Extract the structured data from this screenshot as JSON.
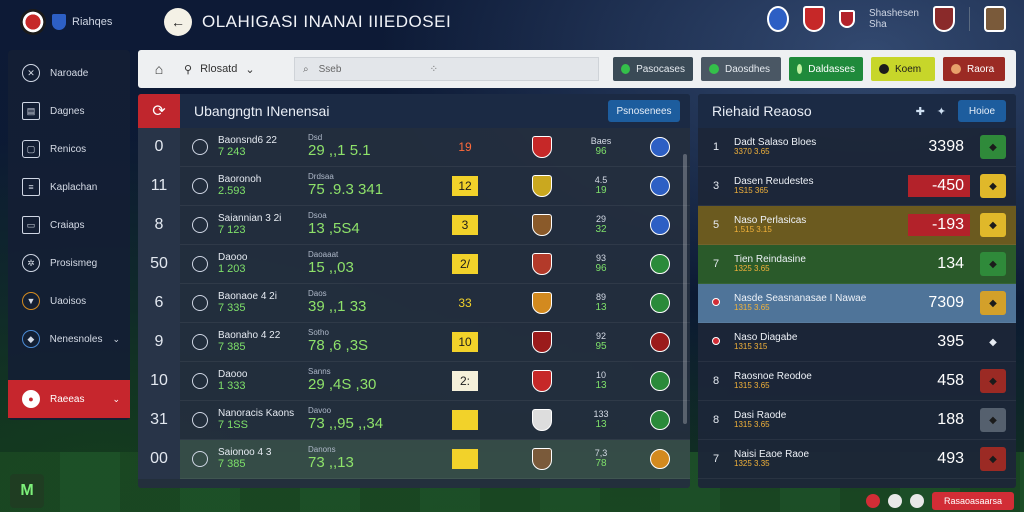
{
  "app": {
    "brand_text": "Riahqes",
    "title": "OLAHIGASI INANAI IIIEDOSEI"
  },
  "top_right": {
    "label_line1": "Shashesen",
    "label_line2": "Sha"
  },
  "sidebar": {
    "items": [
      {
        "label": "Naroade",
        "icon": "whistle-icon"
      },
      {
        "label": "Dagnes",
        "icon": "clipboard-icon"
      },
      {
        "label": "Renicos",
        "icon": "lock-icon"
      },
      {
        "label": "Kaplachan",
        "icon": "list-icon"
      },
      {
        "label": "Craiaps",
        "icon": "folder-icon"
      },
      {
        "label": "Prosismeg",
        "icon": "gear-icon"
      },
      {
        "label": "Uaoisos",
        "icon": "trophy-icon"
      },
      {
        "label": "Nenesnoles",
        "icon": "shield-icon"
      }
    ],
    "active_label": "Raeeas"
  },
  "toolbar": {
    "select_label": "Rlosatd",
    "search_placeholder": "Sseb",
    "btn1": "Pasocases",
    "btn2": "Daosdhes",
    "btn3": "Daldasses",
    "btn4": "Koem",
    "btn5": "Raora"
  },
  "main": {
    "title": "Ubangngtn INenensai",
    "button": "Psnosenees",
    "rows": [
      {
        "num": "0",
        "n1": "Baonsnd6 22",
        "n2": "7 243",
        "s1": "Dsd",
        "s2": "29 ,,1 5.1",
        "pts": "19",
        "pts_bg": "transparent",
        "pts_color": "#ff6a3a",
        "m1": "Baes",
        "m2": "96",
        "kit": "#c62828",
        "badge": "#2d5fc4"
      },
      {
        "num": "11",
        "n1": "Baoronoh",
        "n2": "2.593",
        "s1": "Drdsaa",
        "s2": "75 .9.3 341",
        "pts": "12",
        "pts_bg": "#f2d22a",
        "pts_color": "#1c1c1c",
        "m1": "4.5",
        "m2": "19",
        "kit": "#caa81f",
        "badge": "#2d5fc4"
      },
      {
        "num": "8",
        "n1": "Saiannian 3 2i",
        "n2": "7 123",
        "s1": "Dsoa",
        "s2": "13 ,5S4",
        "pts": "3",
        "pts_bg": "#f2d22a",
        "pts_color": "#1c1c1c",
        "m1": "29",
        "m2": "32",
        "kit": "#8a5a2a",
        "badge": "#2d5fc4"
      },
      {
        "num": "50",
        "n1": "Daooo",
        "n2": "1 203",
        "s1": "Daoaaat",
        "s2": "15 ,,03",
        "pts": "2/",
        "pts_bg": "#f2d22a",
        "pts_color": "#1c1c1c",
        "m1": "93",
        "m2": "96",
        "kit": "#b33a2a",
        "badge": "#2a8a3a"
      },
      {
        "num": "6",
        "n1": "Baonaoe 4 2i",
        "n2": "7 335",
        "s1": "Daos",
        "s2": "39 ,,1 33",
        "pts": "33",
        "pts_bg": "transparent",
        "pts_color": "#f2d22a",
        "m1": "89",
        "m2": "13",
        "kit": "#d38a1f",
        "badge": "#2a8a3a"
      },
      {
        "num": "9",
        "n1": "Baonaho 4 22",
        "n2": "7 385",
        "s1": "Sotho",
        "s2": "78 ,6 ,3S",
        "pts": "10",
        "pts_bg": "#f2d22a",
        "pts_color": "#1c1c1c",
        "m1": "92",
        "m2": "95",
        "kit": "#9b1b1b",
        "badge": "#9b1b1b"
      },
      {
        "num": "10",
        "n1": "Daooo",
        "n2": "1 333",
        "s1": "Sanns",
        "s2": "29 ,4S ,30",
        "pts": "2:",
        "pts_bg": "#f5f0da",
        "pts_color": "#1c1c1c",
        "m1": "10",
        "m2": "13",
        "kit": "#c62828",
        "badge": "#2a8a3a"
      },
      {
        "num": "31",
        "n1": "Nanoracis Kaons",
        "n2": "7 1SS",
        "s1": "Davoo",
        "s2": "73 ,,95 ,,34",
        "pts": "",
        "pts_bg": "#f2d22a",
        "pts_color": "#1c1c1c",
        "m1": "133",
        "m2": "13",
        "kit": "#dddddd",
        "badge": "#2a8a3a"
      },
      {
        "num": "00",
        "n1": "Saionoo 4 3",
        "n2": "7 385",
        "s1": "Danons",
        "s2": "73 ,,13",
        "pts": "",
        "pts_bg": "#f2d22a",
        "pts_color": "#1c1c1c",
        "m1": "7,3",
        "m2": "78",
        "kit": "#7a5a3a",
        "badge": "#d38a1f"
      }
    ]
  },
  "right": {
    "title": "Riehaid Reaoso",
    "button": "Hoioe",
    "rows": [
      {
        "rank": "1",
        "p1": "Dadt Salaso Bloes",
        "p2": "3370  3.65",
        "score": "3398",
        "score_bg": "transparent",
        "sq": "#2f8a3a",
        "row_bg": "transparent"
      },
      {
        "rank": "3",
        "p1": "Dasen Reudestes",
        "p2": "1S15  365",
        "score": "-450",
        "score_bg": "#b3222a",
        "sq": "#e0b82a",
        "row_bg": "transparent"
      },
      {
        "rank": "5",
        "p1": "Naso Perlasicas",
        "p2": "1.515  3.15",
        "score": "-193",
        "score_bg": "#b3222a",
        "sq": "#e0b82a",
        "row_bg": "#6b5a1f"
      },
      {
        "rank": "7",
        "p1": "Tien Reindasine",
        "p2": "1325  3.65",
        "score": "134",
        "score_bg": "transparent",
        "sq": "#2f8a3a",
        "row_bg": "#2a5a2a"
      },
      {
        "rank": "",
        "p1": "Nasde Seasnanasae I Nawae",
        "p2": "1315  3.65",
        "score": "7309",
        "score_bg": "transparent",
        "sq": "#d3a02a",
        "row_bg": "#4f7499"
      },
      {
        "rank": "",
        "p1": "Naso Diagabe",
        "p2": "1315  315",
        "score": "395",
        "score_bg": "transparent",
        "sq": "transparent",
        "row_bg": "transparent"
      },
      {
        "rank": "8",
        "p1": "Raosnoe Reodoe",
        "p2": "1315  3.65",
        "score": "458",
        "score_bg": "transparent",
        "sq": "#9b2a24",
        "row_bg": "transparent"
      },
      {
        "rank": "8",
        "p1": "Dasi Raode",
        "p2": "1315  3.65",
        "score": "188",
        "score_bg": "transparent",
        "sq": "#55606e",
        "row_bg": "transparent"
      },
      {
        "rank": "7",
        "p1": "Naisi Eaoe Raoe",
        "p2": "1325  3.35",
        "score": "493",
        "score_bg": "transparent",
        "sq": "#9b2a24",
        "row_bg": "transparent"
      }
    ]
  },
  "bottom": {
    "pill": "Rasaoasaarsa"
  }
}
